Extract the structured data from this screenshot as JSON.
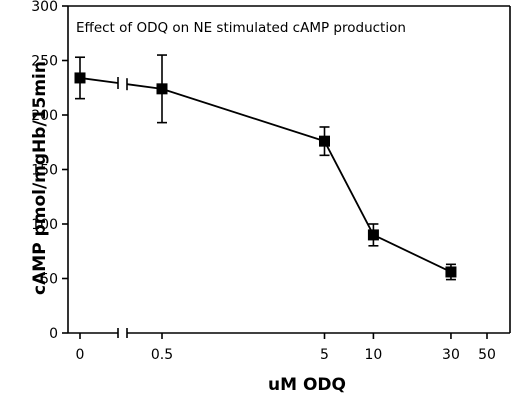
{
  "chart_data": {
    "type": "line",
    "title": "Effect of ODQ on NE stimulated cAMP production",
    "xlabel": "uM ODQ",
    "ylabel": "cAMP pmol/mgHb/15min",
    "ylim": [
      0,
      300
    ],
    "y_ticks": [
      "0",
      "50",
      "100",
      "150",
      "200",
      "250",
      "300"
    ],
    "x_ticks": [
      "0",
      "0.5",
      "5",
      "10",
      "30",
      "50"
    ],
    "x_scale": "log with axis break after 0",
    "axis_break": true,
    "grid": false,
    "legend": "none",
    "series": [
      {
        "x": [
          0,
          0.5,
          5,
          10,
          30
        ],
        "y": [
          234,
          224,
          176,
          90,
          56
        ],
        "error": [
          19,
          31,
          13,
          10,
          7
        ],
        "marker": "filled-square",
        "color": "#000000"
      }
    ]
  }
}
